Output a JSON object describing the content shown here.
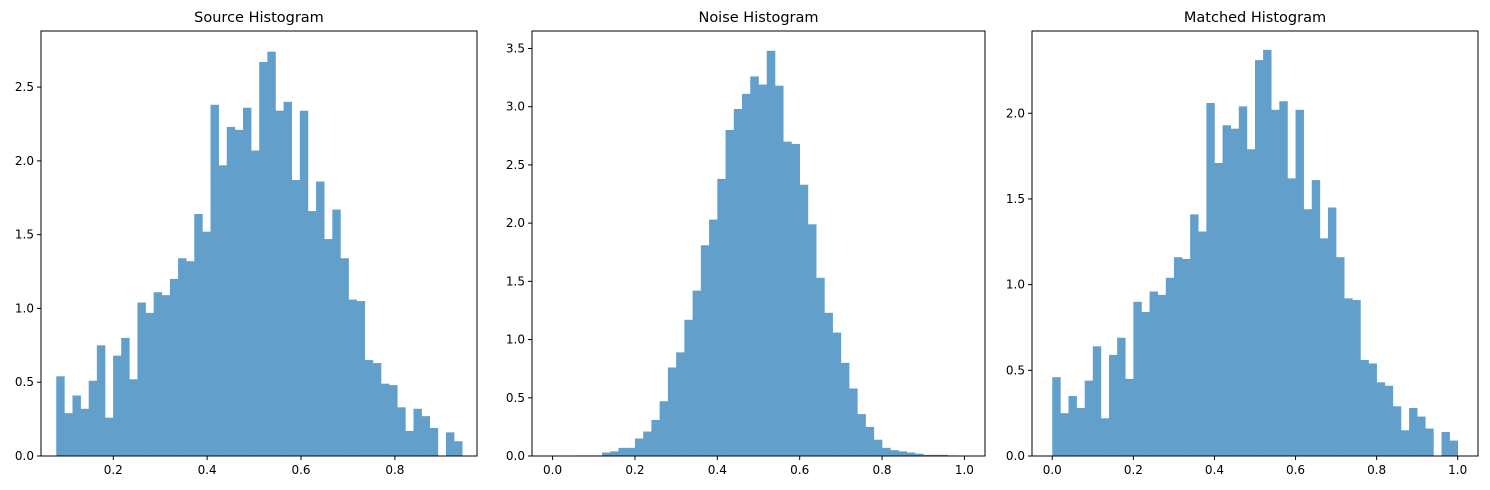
{
  "chart_data": [
    {
      "type": "bar",
      "title": "Source Histogram",
      "xlabel": "",
      "ylabel": "",
      "color": "#62a0cb",
      "xlim": [
        0.046,
        0.975
      ],
      "ylim": [
        0,
        2.88
      ],
      "xticks": [
        {
          "value": 0.2,
          "label": "0.2"
        },
        {
          "value": 0.4,
          "label": "0.4"
        },
        {
          "value": 0.6,
          "label": "0.6"
        },
        {
          "value": 0.8,
          "label": "0.8"
        }
      ],
      "yticks": [
        {
          "value": 0.0,
          "label": "0.0"
        },
        {
          "value": 0.5,
          "label": "0.5"
        },
        {
          "value": 1.0,
          "label": "1.0"
        },
        {
          "value": 1.5,
          "label": "1.5"
        },
        {
          "value": 2.0,
          "label": "2.0"
        },
        {
          "value": 2.5,
          "label": "2.5"
        }
      ],
      "bin_start": 0.0785,
      "bin_end": 0.9435,
      "values": [
        0.54,
        0.29,
        0.41,
        0.32,
        0.51,
        0.75,
        0.26,
        0.68,
        0.8,
        0.52,
        1.04,
        0.97,
        1.11,
        1.09,
        1.2,
        1.34,
        1.32,
        1.64,
        1.52,
        2.38,
        1.97,
        2.23,
        2.21,
        2.36,
        2.07,
        2.67,
        2.74,
        2.34,
        2.4,
        1.87,
        2.34,
        1.66,
        1.86,
        1.47,
        1.67,
        1.34,
        1.06,
        1.05,
        0.65,
        0.63,
        0.49,
        0.48,
        0.33,
        0.17,
        0.32,
        0.27,
        0.19,
        0.0,
        0.16,
        0.1
      ]
    },
    {
      "type": "bar",
      "title": "Noise Histogram",
      "xlabel": "",
      "ylabel": "",
      "color": "#62a0cb",
      "xlim": [
        -0.05,
        1.05
      ],
      "ylim": [
        0,
        3.65
      ],
      "xticks": [
        {
          "value": 0.0,
          "label": "0.0"
        },
        {
          "value": 0.2,
          "label": "0.2"
        },
        {
          "value": 0.4,
          "label": "0.4"
        },
        {
          "value": 0.6,
          "label": "0.6"
        },
        {
          "value": 0.8,
          "label": "0.8"
        },
        {
          "value": 1.0,
          "label": "1.0"
        }
      ],
      "yticks": [
        {
          "value": 0.0,
          "label": "0.0"
        },
        {
          "value": 0.5,
          "label": "0.5"
        },
        {
          "value": 1.0,
          "label": "1.0"
        },
        {
          "value": 1.5,
          "label": "1.5"
        },
        {
          "value": 2.0,
          "label": "2.0"
        },
        {
          "value": 2.5,
          "label": "2.5"
        },
        {
          "value": 3.0,
          "label": "3.0"
        },
        {
          "value": 3.5,
          "label": "3.5"
        }
      ],
      "bin_start": 0.0,
      "bin_end": 1.0,
      "values": [
        0.0,
        0.0,
        0.0,
        0.005,
        0.005,
        0.005,
        0.03,
        0.04,
        0.07,
        0.07,
        0.15,
        0.21,
        0.31,
        0.47,
        0.76,
        0.89,
        1.17,
        1.42,
        1.81,
        2.03,
        2.38,
        2.8,
        2.98,
        3.11,
        3.26,
        3.19,
        3.48,
        3.18,
        2.7,
        2.68,
        2.33,
        1.99,
        1.53,
        1.23,
        1.06,
        0.8,
        0.58,
        0.36,
        0.25,
        0.14,
        0.07,
        0.05,
        0.04,
        0.03,
        0.02,
        0.01,
        0.01,
        0.01,
        0.005,
        0.0
      ]
    },
    {
      "type": "bar",
      "title": "Matched Histogram",
      "xlabel": "",
      "ylabel": "",
      "color": "#62a0cb",
      "xlim": [
        -0.05,
        1.05
      ],
      "ylim": [
        0,
        2.48
      ],
      "xticks": [
        {
          "value": 0.0,
          "label": "0.0"
        },
        {
          "value": 0.2,
          "label": "0.2"
        },
        {
          "value": 0.4,
          "label": "0.4"
        },
        {
          "value": 0.6,
          "label": "0.6"
        },
        {
          "value": 0.8,
          "label": "0.8"
        },
        {
          "value": 1.0,
          "label": "1.0"
        }
      ],
      "yticks": [
        {
          "value": 0.0,
          "label": "0.0"
        },
        {
          "value": 0.5,
          "label": "0.5"
        },
        {
          "value": 1.0,
          "label": "1.0"
        },
        {
          "value": 1.5,
          "label": "1.5"
        },
        {
          "value": 2.0,
          "label": "2.0"
        }
      ],
      "bin_start": 0.0,
      "bin_end": 1.0,
      "values": [
        0.46,
        0.25,
        0.35,
        0.28,
        0.44,
        0.64,
        0.22,
        0.59,
        0.69,
        0.45,
        0.9,
        0.84,
        0.96,
        0.94,
        1.04,
        1.16,
        1.15,
        1.41,
        1.31,
        2.06,
        1.71,
        1.93,
        1.91,
        2.04,
        1.79,
        2.31,
        2.37,
        2.02,
        2.07,
        1.62,
        2.02,
        1.44,
        1.61,
        1.27,
        1.45,
        1.16,
        0.92,
        0.91,
        0.56,
        0.54,
        0.43,
        0.41,
        0.29,
        0.15,
        0.28,
        0.23,
        0.16,
        0.0,
        0.14,
        0.09
      ]
    }
  ]
}
